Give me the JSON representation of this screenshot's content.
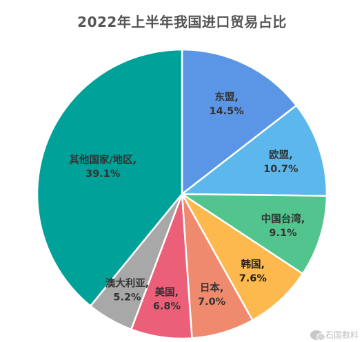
{
  "chart_data": {
    "type": "pie",
    "title": "2022年上半年我国进口贸易占比",
    "slices": [
      {
        "name": "东盟",
        "value": 14.5,
        "label": "14.5%",
        "color": "#5b95e6"
      },
      {
        "name": "欧盟",
        "value": 10.7,
        "label": "10.7%",
        "color": "#5cb8ec"
      },
      {
        "name": "中国台湾",
        "value": 9.1,
        "label": "9.1%",
        "color": "#52c58e"
      },
      {
        "name": "韩国",
        "value": 7.6,
        "label": "7.6%",
        "color": "#fdb84e"
      },
      {
        "name": "日本",
        "value": 7.0,
        "label": "7.0%",
        "color": "#ef8a6e"
      },
      {
        "name": "美国",
        "value": 6.8,
        "label": "6.8%",
        "color": "#ec5f78"
      },
      {
        "name": "澳大利亚",
        "value": 5.2,
        "label": "5.2%",
        "color": "#a8a8a8"
      },
      {
        "name": "其他国家/地区",
        "value": 39.1,
        "label": "39.1%",
        "color": "#00a199"
      }
    ],
    "start_angle": "12 o'clock",
    "direction": "clockwise",
    "legend": "none",
    "data_labels": "inside"
  },
  "watermark": {
    "text": "石国数料",
    "icon": "wechat-icon"
  }
}
